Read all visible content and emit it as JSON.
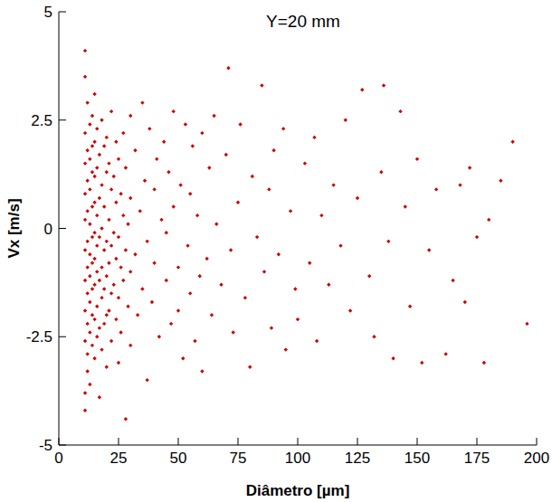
{
  "chart_data": {
    "type": "scatter",
    "title": "Y=20 mm",
    "x_label": "Diâmetro [µm]",
    "y_label": "Vx [m/s]",
    "color": "#cc0000",
    "marker": "diamond",
    "xlim": [
      0,
      200
    ],
    "ylim": [
      -5,
      5
    ],
    "xticks": [
      0,
      25,
      50,
      75,
      100,
      125,
      150,
      175,
      200
    ],
    "yticks": [
      -5,
      -2.5,
      0,
      2.5,
      5
    ],
    "grid": false,
    "x": [
      11,
      11,
      11,
      11,
      11,
      11,
      11,
      11,
      11,
      11,
      11,
      11,
      12,
      12,
      12,
      12,
      12,
      12,
      12,
      12,
      12,
      12,
      13,
      13,
      13,
      13,
      13,
      13,
      13,
      13,
      13,
      14,
      14,
      14,
      14,
      14,
      14,
      14,
      14,
      14,
      15,
      15,
      15,
      15,
      15,
      15,
      15,
      15,
      15,
      16,
      16,
      16,
      16,
      16,
      16,
      16,
      17,
      17,
      17,
      17,
      17,
      17,
      18,
      18,
      18,
      18,
      18,
      18,
      19,
      19,
      19,
      19,
      19,
      20,
      20,
      20,
      20,
      20,
      20,
      21,
      21,
      21,
      21,
      22,
      22,
      22,
      22,
      22,
      23,
      23,
      23,
      24,
      24,
      24,
      24,
      25,
      25,
      25,
      25,
      26,
      26,
      26,
      27,
      27,
      27,
      28,
      28,
      28,
      29,
      29,
      30,
      30,
      30,
      30,
      32,
      32,
      33,
      34,
      35,
      35,
      36,
      37,
      37,
      38,
      39,
      40,
      40,
      41,
      42,
      43,
      44,
      45,
      45,
      46,
      47,
      48,
      48,
      50,
      50,
      51,
      52,
      53,
      54,
      55,
      55,
      56,
      57,
      58,
      59,
      60,
      60,
      62,
      63,
      64,
      65,
      66,
      68,
      70,
      71,
      72,
      73,
      75,
      76,
      78,
      80,
      81,
      83,
      85,
      86,
      88,
      89,
      90,
      92,
      94,
      95,
      97,
      99,
      100,
      103,
      105,
      107,
      108,
      110,
      113,
      115,
      118,
      120,
      122,
      125,
      127,
      130,
      132,
      135,
      136,
      138,
      140,
      143,
      145,
      147,
      150,
      152,
      155,
      158,
      162,
      165,
      168,
      170,
      172,
      175,
      178,
      180,
      185,
      190,
      196
    ],
    "values": [
      4.1,
      3.5,
      2.2,
      1.5,
      0.8,
      0.2,
      -0.5,
      -1.2,
      -1.9,
      -2.6,
      -3.8,
      -4.2,
      2.9,
      1.8,
      1.1,
      0.4,
      -0.3,
      -0.9,
      -1.5,
      -2.2,
      -2.9,
      -3.3,
      2.4,
      1.6,
      0.9,
      0.1,
      -0.6,
      -1.1,
      -1.7,
      -2.4,
      -3.6,
      2.6,
      1.9,
      1.3,
      0.5,
      -0.2,
      -0.8,
      -1.4,
      -2.0,
      -2.7,
      3.1,
      2.0,
      1.2,
      0.6,
      -0.1,
      -0.7,
      -1.3,
      -2.1,
      -3.0,
      2.3,
      1.4,
      0.3,
      -0.4,
      -1.0,
      -1.8,
      -2.5,
      1.7,
      0.7,
      -0.2,
      -1.2,
      -2.3,
      -3.9,
      2.5,
      1.0,
      0,
      -0.9,
      -1.6,
      -2.8,
      1.9,
      0.5,
      -0.5,
      -1.4,
      -2.2,
      2.1,
      1.3,
      -0.3,
      -1.1,
      -2.0,
      -3.2,
      1.5,
      0.2,
      -0.8,
      -1.9,
      2.7,
      0.9,
      -0.4,
      -1.5,
      -2.6,
      1.2,
      -0.1,
      -1.3,
      2.0,
      0.6,
      -0.7,
      -2.1,
      1.6,
      -0.2,
      -1.6,
      -3.1,
      0.8,
      -0.9,
      -2.4,
      2.2,
      0.3,
      -1.2,
      1.4,
      -0.5,
      -4.4,
      0.1,
      -1.8,
      2.6,
      0.7,
      -1.0,
      -2.7,
      1.8,
      -0.6,
      -2.0,
      0.4,
      2.9,
      -1.4,
      1.1,
      -0.3,
      -3.5,
      2.3,
      -1.7,
      0.9,
      -0.8,
      1.6,
      -2.5,
      0.2,
      2.0,
      -1.2,
      -0.1,
      1.3,
      -2.2,
      2.7,
      0.5,
      -0.9,
      -1.9,
      1.0,
      -3.0,
      2.4,
      -0.4,
      0.8,
      -1.5,
      1.9,
      -2.6,
      0.3,
      -1.1,
      2.2,
      -3.3,
      -0.7,
      1.4,
      -2.0,
      2.6,
      0.1,
      -1.3,
      1.7,
      3.7,
      -0.5,
      -2.4,
      0.6,
      2.4,
      -1.6,
      -3.2,
      1.2,
      -0.2,
      3.3,
      -1.0,
      0.9,
      -2.3,
      1.8,
      -0.6,
      2.3,
      -2.8,
      0.4,
      -1.4,
      -2.1,
      1.5,
      -0.8,
      2.1,
      -2.6,
      0.3,
      -1.3,
      1.0,
      -0.4,
      2.5,
      -1.9,
      0.7,
      3.2,
      -1.1,
      -2.5,
      1.3,
      3.3,
      -0.3,
      -3.0,
      2.7,
      0.5,
      -1.8,
      1.6,
      -3.1,
      -0.5,
      0.9,
      -2.9,
      -1.2,
      1.0,
      -1.7,
      1.4,
      -0.2,
      -3.1,
      0.2,
      1.1,
      2.0,
      -2.2
    ]
  }
}
